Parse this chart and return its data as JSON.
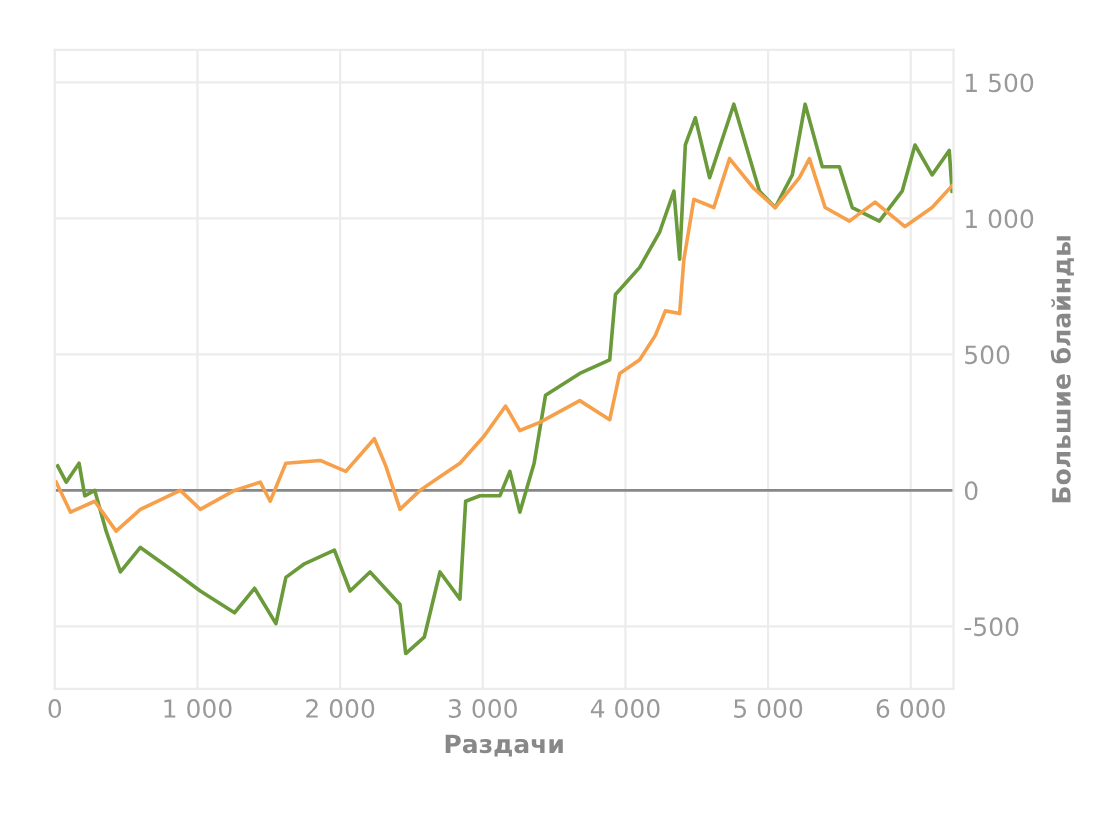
{
  "chart_data": {
    "type": "line",
    "xlabel": "Раздачи",
    "ylabel": "Большие блайнды",
    "xlim": [
      0,
      6300
    ],
    "ylim": [
      -730,
      1620
    ],
    "xticks": [
      0,
      {
        "value": 1000,
        "label": "1 000"
      },
      {
        "value": 2000,
        "label": "2 000"
      },
      {
        "value": 3000,
        "label": "3 000"
      },
      {
        "value": 4000,
        "label": "4 000"
      },
      {
        "value": 5000,
        "label": "5 000"
      },
      {
        "value": 6000,
        "label": "6 000"
      }
    ],
    "yticks": [
      {
        "value": -500,
        "label": "-500"
      },
      0,
      500,
      {
        "value": 1000,
        "label": "1 000"
      },
      {
        "value": 1500,
        "label": "1 500"
      }
    ],
    "grid": true,
    "marker": "none",
    "line_style": "solid",
    "ref_lines": [
      {
        "axis": "y",
        "value": 0,
        "color": "#888888"
      }
    ],
    "series": [
      {
        "color": "#6a9a3a",
        "x": [
          20,
          80,
          170,
          210,
          280,
          360,
          460,
          600,
          840,
          1020,
          1260,
          1400,
          1550,
          1620,
          1750,
          1960,
          2070,
          2210,
          2420,
          2460,
          2590,
          2700,
          2840,
          2880,
          2980,
          3120,
          3190,
          3260,
          3360,
          3440,
          3680,
          3890,
          3930,
          4100,
          4240,
          4340,
          4380,
          4420,
          4490,
          4590,
          4760,
          4940,
          5050,
          5170,
          5260,
          5380,
          5500,
          5590,
          5780,
          5940,
          6030,
          6150,
          6270,
          6290
        ],
        "values": [
          90,
          30,
          100,
          -20,
          0,
          -150,
          -300,
          -210,
          -300,
          -370,
          -450,
          -360,
          -490,
          -320,
          -270,
          -220,
          -370,
          -300,
          -420,
          -600,
          -540,
          -300,
          -400,
          -40,
          -20,
          -20,
          70,
          -80,
          100,
          350,
          430,
          480,
          720,
          820,
          950,
          1100,
          850,
          1270,
          1370,
          1150,
          1420,
          1100,
          1040,
          1160,
          1420,
          1190,
          1190,
          1040,
          990,
          1100,
          1270,
          1160,
          1250,
          1100
        ]
      },
      {
        "color": "#f7a04b",
        "x": [
          10,
          110,
          280,
          430,
          600,
          880,
          1020,
          1260,
          1440,
          1510,
          1620,
          1860,
          2040,
          2240,
          2320,
          2420,
          2560,
          2700,
          2840,
          3010,
          3160,
          3260,
          3400,
          3680,
          3890,
          3960,
          4100,
          4210,
          4280,
          4380,
          4410,
          4480,
          4620,
          4730,
          4900,
          5050,
          5220,
          5290,
          5400,
          5570,
          5750,
          5960,
          6150,
          6290
        ],
        "values": [
          30,
          -80,
          -40,
          -150,
          -70,
          0,
          -70,
          0,
          30,
          -40,
          100,
          110,
          70,
          190,
          90,
          -70,
          0,
          50,
          100,
          200,
          310,
          220,
          250,
          330,
          260,
          430,
          480,
          570,
          660,
          650,
          850,
          1070,
          1040,
          1220,
          1110,
          1040,
          1150,
          1220,
          1040,
          990,
          1060,
          970,
          1040,
          1120
        ]
      }
    ]
  }
}
